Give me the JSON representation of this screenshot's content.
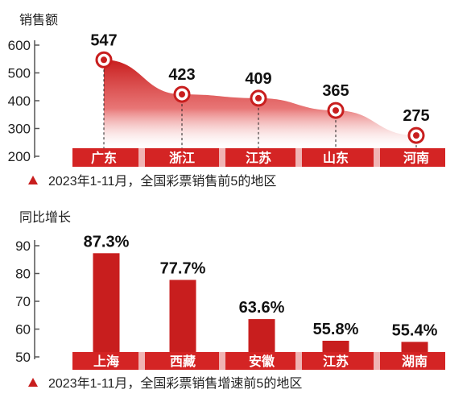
{
  "colors": {
    "accent": "#c81e1e",
    "band": "#d42424",
    "divider": "#f0b4b4",
    "text": "#222222"
  },
  "chart_data": [
    {
      "type": "area",
      "ylabel": "销售额",
      "ylim": [
        200,
        600
      ],
      "yticks": [
        200,
        300,
        400,
        500,
        600
      ],
      "categories": [
        "广东",
        "浙江",
        "江苏",
        "山东",
        "河南"
      ],
      "values": [
        547,
        423,
        409,
        365,
        275
      ],
      "value_labels": [
        "547",
        "423",
        "409",
        "365",
        "275"
      ],
      "note": "2023年1-11月，全国彩票销售前5的地区"
    },
    {
      "type": "bar",
      "ylabel": "同比增长",
      "ylim": [
        50,
        90
      ],
      "yticks": [
        50,
        60,
        70,
        80,
        90
      ],
      "categories": [
        "上海",
        "西藏",
        "安徽",
        "江苏",
        "湖南"
      ],
      "values": [
        87.3,
        77.7,
        63.6,
        55.8,
        55.4
      ],
      "value_labels": [
        "87.3%",
        "77.7%",
        "63.6%",
        "55.8%",
        "55.4%"
      ],
      "note": "2023年1-11月，全国彩票销售增速前5的地区"
    }
  ]
}
